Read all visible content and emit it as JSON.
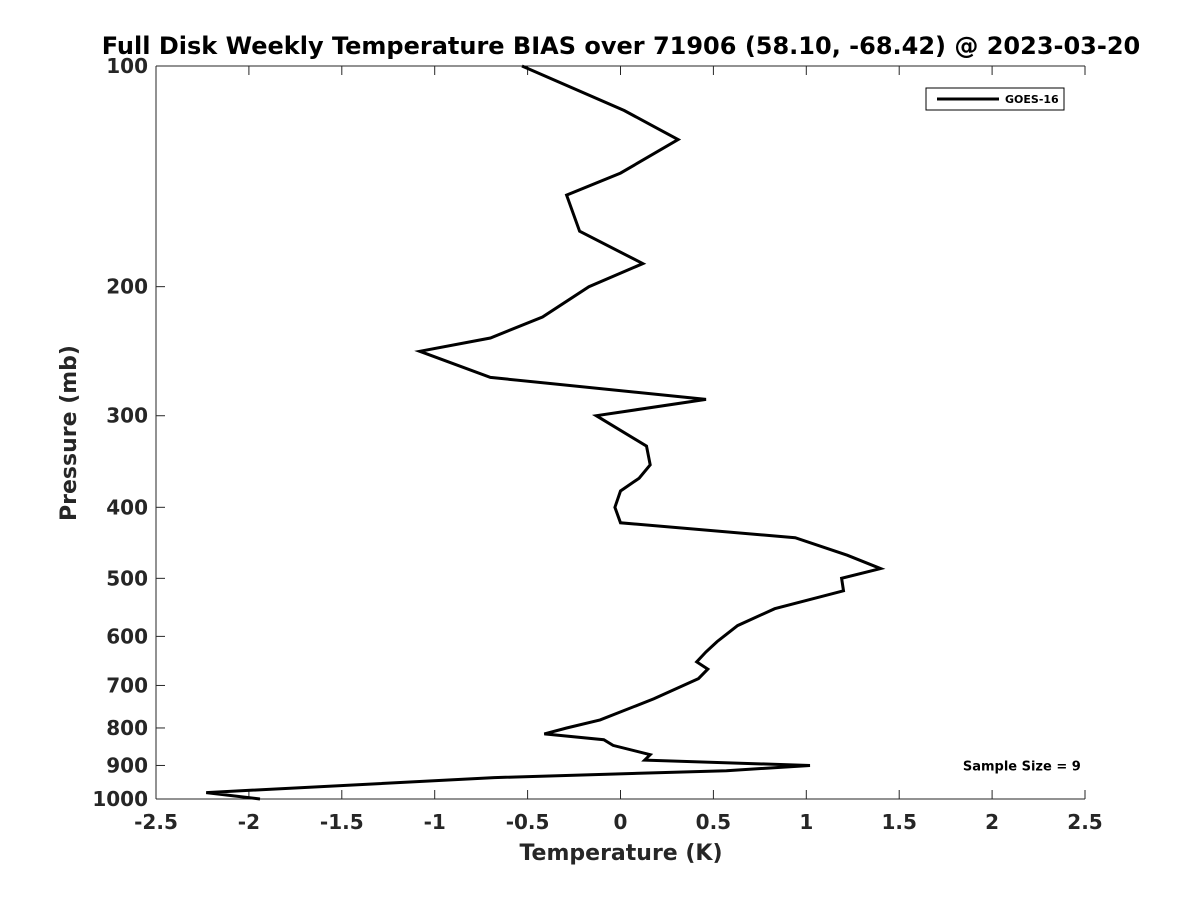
{
  "chart_data": {
    "type": "line",
    "title": "Full Disk Weekly Temperature BIAS over 71906 (58.10, -68.42) @ 2023-03-20",
    "xlabel": "Temperature (K)",
    "ylabel": "Pressure (mb)",
    "xlim": [
      -2.5,
      2.5
    ],
    "ylim": [
      100,
      1000
    ],
    "y_scale": "log",
    "y_reversed": true,
    "x_ticks": [
      -2.5,
      -2,
      -1.5,
      -1,
      -0.5,
      0,
      0.5,
      1,
      1.5,
      2,
      2.5
    ],
    "x_tick_labels": [
      "-2.5",
      "-2",
      "-1.5",
      "-1",
      "-0.5",
      "0",
      "0.5",
      "1",
      "1.5",
      "2",
      "2.5"
    ],
    "y_ticks": [
      100,
      200,
      300,
      400,
      500,
      600,
      700,
      800,
      900,
      1000
    ],
    "y_tick_labels": [
      "100",
      "200",
      "300",
      "400",
      "500",
      "600",
      "700",
      "800",
      "900",
      "1000"
    ],
    "grid": false,
    "legend_position": "top-right",
    "line_color": "#000000",
    "series": [
      {
        "name": "GOES-16",
        "points": [
          {
            "t": -0.53,
            "p": 100
          },
          {
            "t": 0.02,
            "p": 115
          },
          {
            "t": 0.31,
            "p": 126
          },
          {
            "t": 0.0,
            "p": 140
          },
          {
            "t": -0.29,
            "p": 150
          },
          {
            "t": -0.22,
            "p": 168
          },
          {
            "t": 0.12,
            "p": 186
          },
          {
            "t": -0.17,
            "p": 200
          },
          {
            "t": -0.42,
            "p": 220
          },
          {
            "t": -0.7,
            "p": 235
          },
          {
            "t": -1.08,
            "p": 245
          },
          {
            "t": -0.7,
            "p": 266
          },
          {
            "t": 0.46,
            "p": 285
          },
          {
            "t": -0.13,
            "p": 300
          },
          {
            "t": 0.14,
            "p": 330
          },
          {
            "t": 0.16,
            "p": 350
          },
          {
            "t": 0.1,
            "p": 365
          },
          {
            "t": 0.0,
            "p": 380
          },
          {
            "t": -0.03,
            "p": 400
          },
          {
            "t": 0.0,
            "p": 420
          },
          {
            "t": 0.94,
            "p": 440
          },
          {
            "t": 1.22,
            "p": 465
          },
          {
            "t": 1.4,
            "p": 485
          },
          {
            "t": 1.19,
            "p": 500
          },
          {
            "t": 1.2,
            "p": 520
          },
          {
            "t": 0.83,
            "p": 550
          },
          {
            "t": 0.63,
            "p": 580
          },
          {
            "t": 0.52,
            "p": 610
          },
          {
            "t": 0.46,
            "p": 630
          },
          {
            "t": 0.41,
            "p": 650
          },
          {
            "t": 0.47,
            "p": 665
          },
          {
            "t": 0.42,
            "p": 685
          },
          {
            "t": 0.18,
            "p": 730
          },
          {
            "t": -0.11,
            "p": 780
          },
          {
            "t": -0.29,
            "p": 800
          },
          {
            "t": -0.41,
            "p": 815
          },
          {
            "t": -0.09,
            "p": 830
          },
          {
            "t": -0.04,
            "p": 845
          },
          {
            "t": 0.16,
            "p": 870
          },
          {
            "t": 0.13,
            "p": 885
          },
          {
            "t": 1.02,
            "p": 900
          },
          {
            "t": 0.57,
            "p": 915
          },
          {
            "t": -0.68,
            "p": 935
          },
          {
            "t": -2.23,
            "p": 980
          },
          {
            "t": -1.94,
            "p": 1000
          }
        ]
      }
    ],
    "annotations": [
      {
        "text": "Sample Size = 9",
        "t": 2.16,
        "p": 900
      }
    ]
  }
}
